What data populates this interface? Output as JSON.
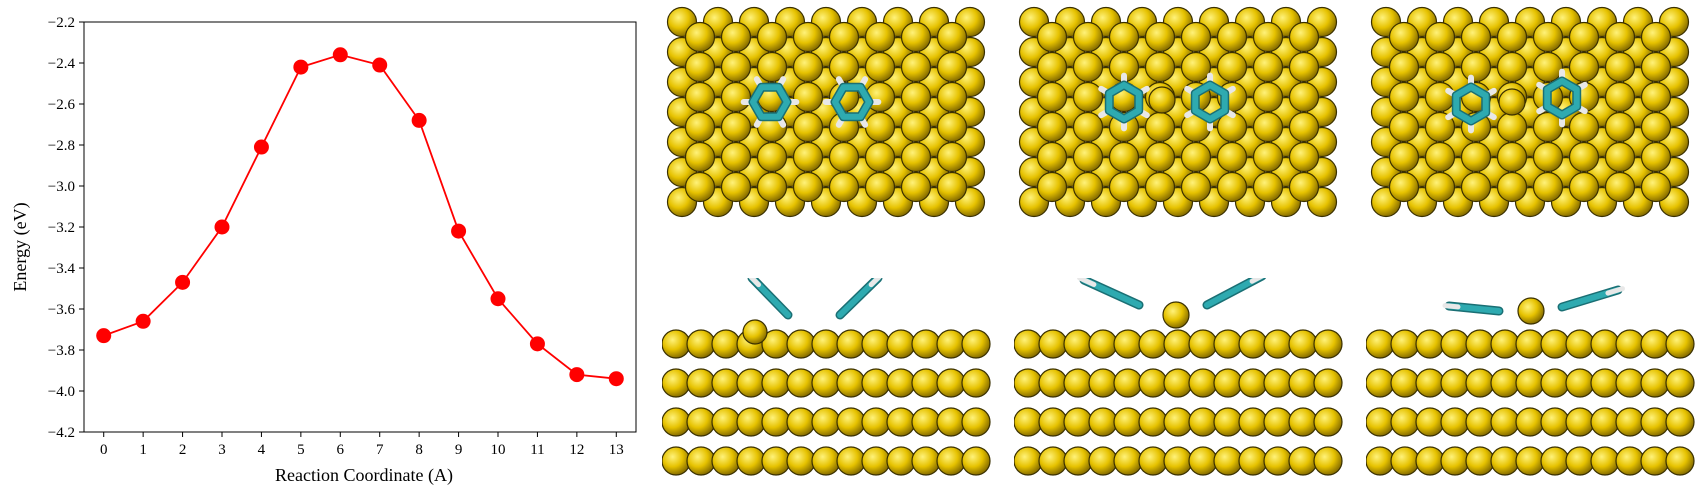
{
  "chart_data": {
    "type": "line",
    "xlabel": "Reaction Coordinate (A)",
    "ylabel": "Energy (eV)",
    "x": [
      0,
      1,
      2,
      3,
      4,
      5,
      6,
      7,
      8,
      9,
      10,
      11,
      12,
      13
    ],
    "y": [
      -3.73,
      -3.66,
      -3.47,
      -3.2,
      -2.81,
      -2.42,
      -2.36,
      -2.41,
      -2.68,
      -3.22,
      -3.55,
      -3.77,
      -3.92,
      -3.94
    ],
    "xticks": [
      "0",
      "1",
      "2",
      "3",
      "4",
      "5",
      "6",
      "7",
      "8",
      "9",
      "10",
      "11",
      "12",
      "13"
    ],
    "yticks": [
      "-2.2",
      "-2.4",
      "-2.6",
      "-2.8",
      "-3.0",
      "-3.2",
      "-3.4",
      "-3.6",
      "-3.8",
      "-4.0",
      "-4.2"
    ],
    "xlim": [
      -0.5,
      13.5
    ],
    "ylim": [
      -4.2,
      -2.2
    ],
    "grid": false,
    "line_color": "#ff0000",
    "marker_color": "#ff0000"
  },
  "illustrations": {
    "atom_color": "#e6c200",
    "atom_edge_color": "#3a3000",
    "carbon_color": "#2eaab0",
    "hydrogen_color": "#e8e8e8",
    "panels": [
      {
        "view": "top",
        "stage": "initial"
      },
      {
        "view": "top",
        "stage": "intermediate"
      },
      {
        "view": "top",
        "stage": "final"
      },
      {
        "view": "side",
        "stage": "initial"
      },
      {
        "view": "side",
        "stage": "intermediate"
      },
      {
        "view": "side",
        "stage": "final"
      }
    ]
  }
}
